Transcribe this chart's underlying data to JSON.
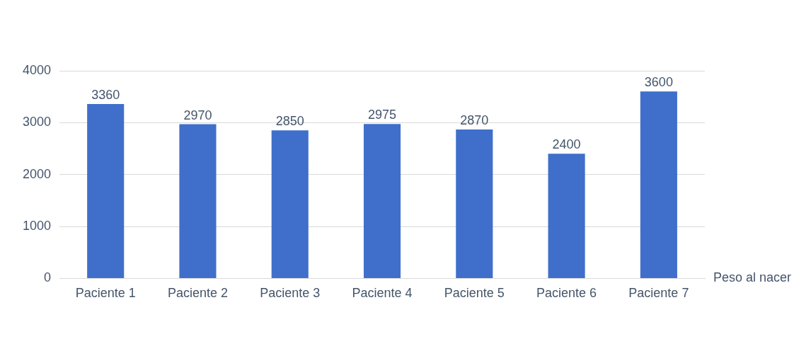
{
  "chart_data": {
    "type": "bar",
    "categories": [
      "Paciente 1",
      "Paciente 2",
      "Paciente 3",
      "Paciente 4",
      "Paciente 5",
      "Paciente 6",
      "Paciente 7"
    ],
    "series": [
      {
        "name": "Peso al nacer",
        "color": "#3f6fcb",
        "values": [
          3360,
          2970,
          2850,
          2975,
          2870,
          2400,
          3600
        ]
      }
    ],
    "ylim": [
      0,
      4000
    ],
    "yticks": [
      0,
      1000,
      2000,
      3000,
      4000
    ],
    "grid": "y",
    "data_labels": true,
    "legend": false
  }
}
